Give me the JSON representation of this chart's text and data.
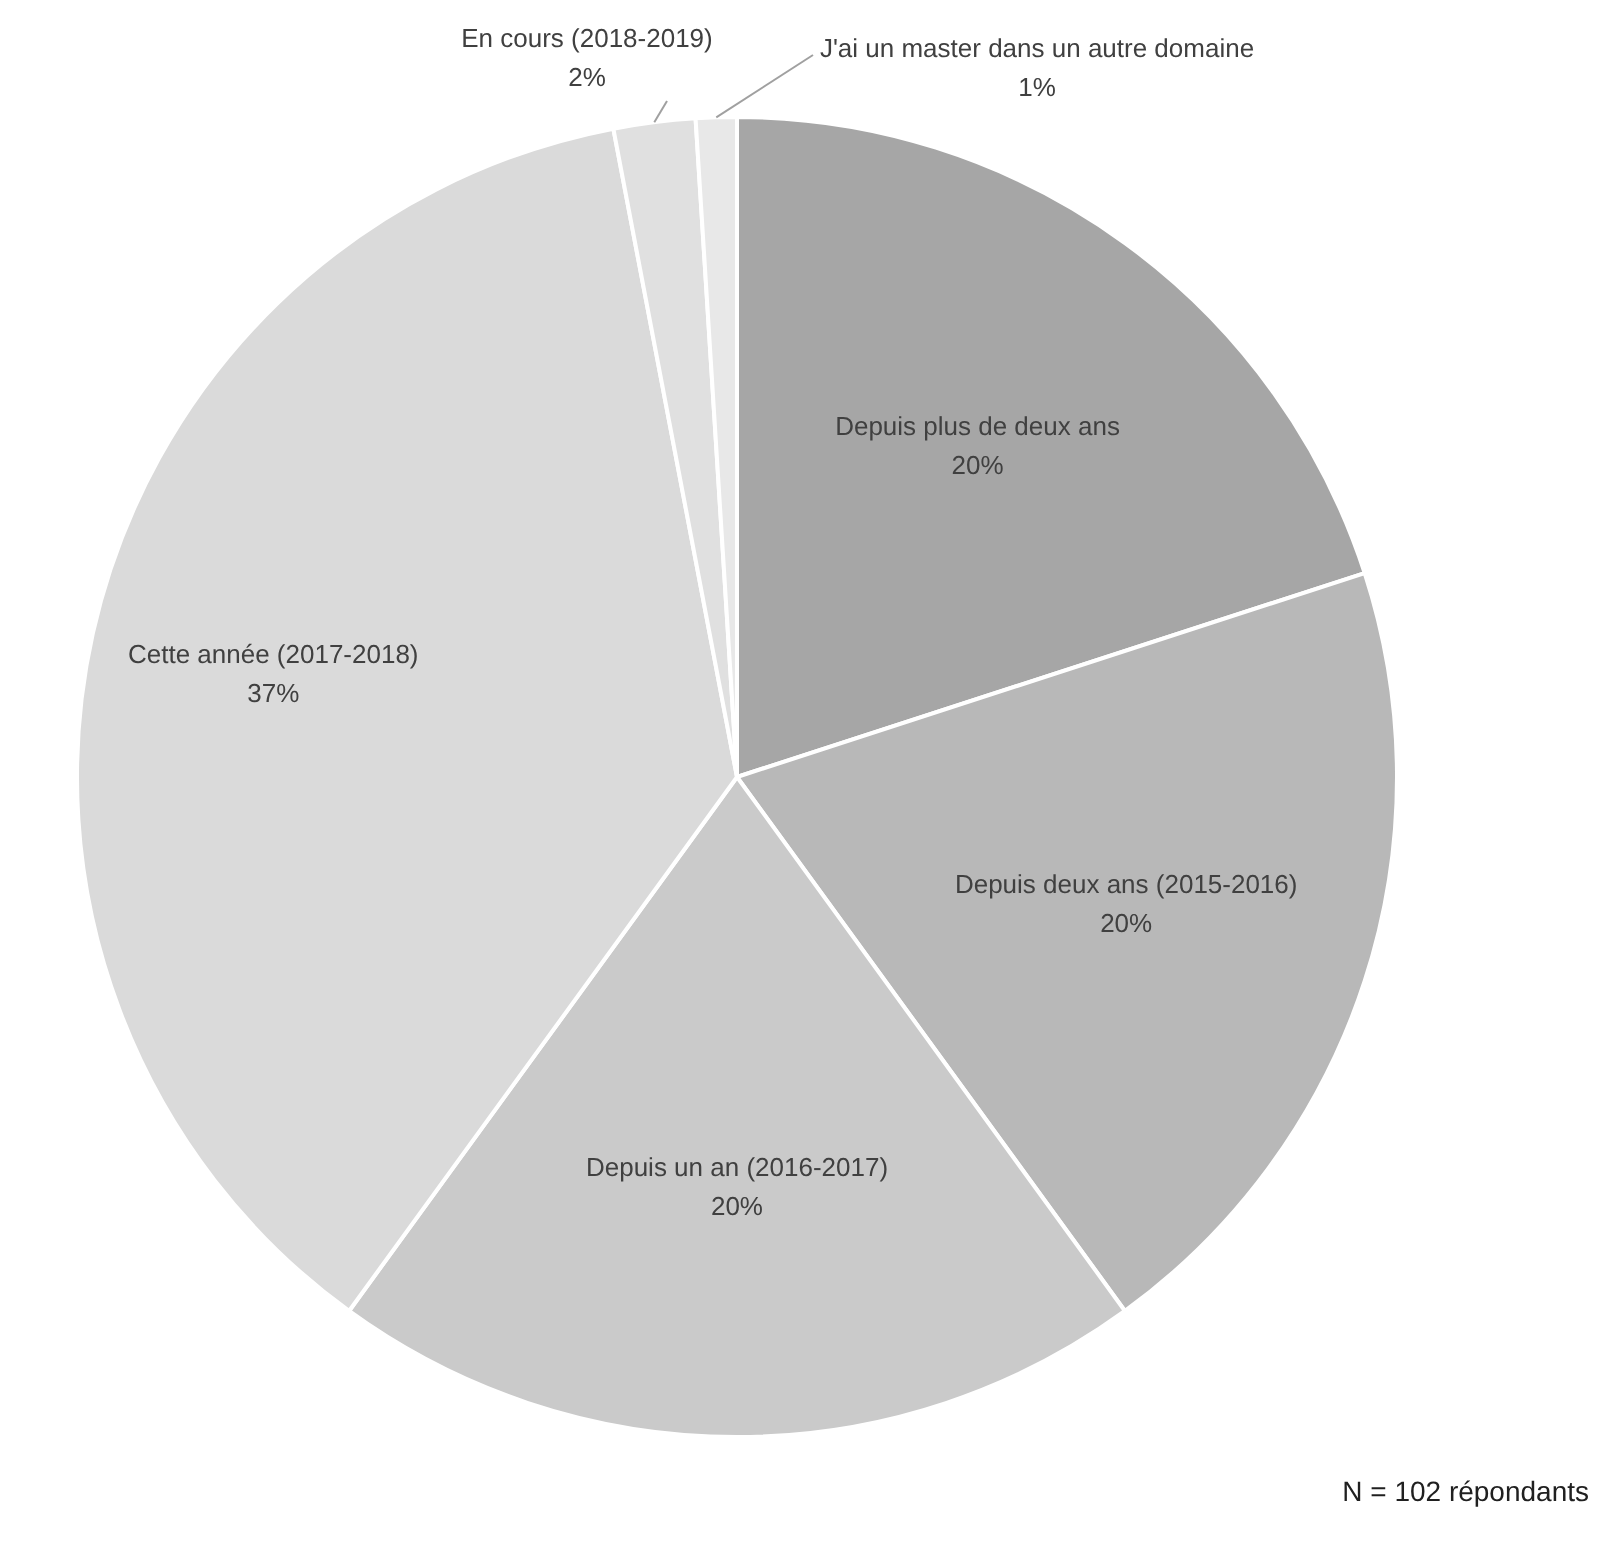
{
  "chart_data": {
    "type": "pie",
    "categories": [
      "Depuis plus de deux ans",
      "Depuis deux ans (2015-2016)",
      "Depuis un an (2016-2017)",
      "Cette année (2017-2018)",
      "En cours (2018-2019)",
      "J'ai un master dans un autre domaine"
    ],
    "values": [
      20,
      20,
      20,
      37,
      2,
      1
    ],
    "value_labels": [
      "20%",
      "20%",
      "20%",
      "37%",
      "2%",
      "1%"
    ],
    "colors": [
      "#a6a6a6",
      "#b8b8b8",
      "#cacaca",
      "#dadada",
      "#e0e0e0",
      "#e8e8e8"
    ],
    "annotations": [
      "N = 102 répondants"
    ]
  }
}
